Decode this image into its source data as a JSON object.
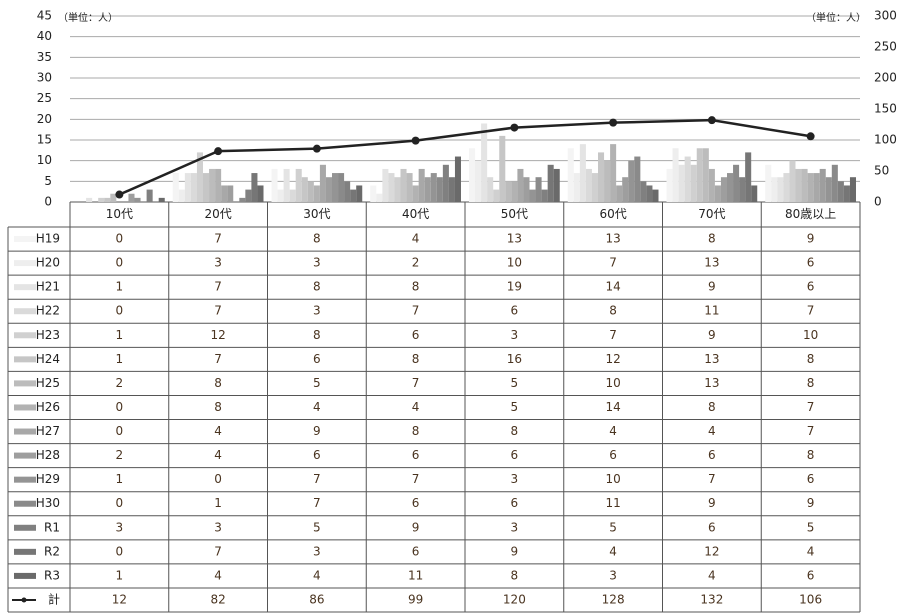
{
  "chart_data": {
    "type": "bar",
    "y_unit": "（単位：人）",
    "y2_unit": "（単位：人）",
    "categories": [
      "10代",
      "20代",
      "30代",
      "40代",
      "50代",
      "60代",
      "70代",
      "80歳以上"
    ],
    "series": [
      {
        "name": "H19",
        "color": "#f4f4f4",
        "values": [
          0,
          7,
          8,
          4,
          13,
          13,
          8,
          9
        ]
      },
      {
        "name": "H20",
        "color": "#eeeeee",
        "values": [
          0,
          3,
          3,
          2,
          10,
          7,
          13,
          6
        ]
      },
      {
        "name": "H21",
        "color": "#e4e4e4",
        "values": [
          1,
          7,
          8,
          8,
          19,
          14,
          9,
          6
        ]
      },
      {
        "name": "H22",
        "color": "#dadada",
        "values": [
          0,
          7,
          3,
          7,
          6,
          8,
          11,
          7
        ]
      },
      {
        "name": "H23",
        "color": "#d0d0d0",
        "values": [
          1,
          12,
          8,
          6,
          3,
          7,
          9,
          10
        ]
      },
      {
        "name": "H24",
        "color": "#c6c6c6",
        "values": [
          1,
          7,
          6,
          8,
          16,
          12,
          13,
          8
        ]
      },
      {
        "name": "H25",
        "color": "#bcbcbc",
        "values": [
          2,
          8,
          5,
          7,
          5,
          10,
          13,
          8
        ]
      },
      {
        "name": "H26",
        "color": "#b2b2b2",
        "values": [
          0,
          8,
          4,
          4,
          5,
          14,
          8,
          7
        ]
      },
      {
        "name": "H27",
        "color": "#a8a8a8",
        "values": [
          0,
          4,
          9,
          8,
          8,
          4,
          4,
          7
        ]
      },
      {
        "name": "H28",
        "color": "#9e9e9e",
        "values": [
          2,
          4,
          6,
          6,
          6,
          6,
          6,
          8
        ]
      },
      {
        "name": "H29",
        "color": "#949494",
        "values": [
          1,
          0,
          7,
          7,
          3,
          10,
          7,
          6
        ]
      },
      {
        "name": "H30",
        "color": "#8a8a8a",
        "values": [
          0,
          1,
          7,
          6,
          6,
          11,
          9,
          9
        ]
      },
      {
        "name": "R1",
        "color": "#808080",
        "values": [
          3,
          3,
          5,
          9,
          3,
          5,
          6,
          5
        ]
      },
      {
        "name": "R2",
        "color": "#767676",
        "values": [
          0,
          7,
          3,
          6,
          9,
          4,
          12,
          4
        ]
      },
      {
        "name": "R3",
        "color": "#6a6a6a",
        "values": [
          1,
          4,
          4,
          11,
          8,
          3,
          4,
          6
        ]
      },
      {
        "name": "計",
        "type": "line",
        "axis": "y2",
        "color": "#222222",
        "values": [
          12,
          82,
          86,
          99,
          120,
          128,
          132,
          106
        ]
      }
    ],
    "ylim": [
      0,
      45
    ],
    "yticks": [
      0,
      5,
      10,
      15,
      20,
      25,
      30,
      35,
      40,
      45
    ],
    "y2lim": [
      0,
      300
    ],
    "y2ticks": [
      0,
      50,
      100,
      150,
      200,
      250,
      300
    ],
    "grid": true
  }
}
